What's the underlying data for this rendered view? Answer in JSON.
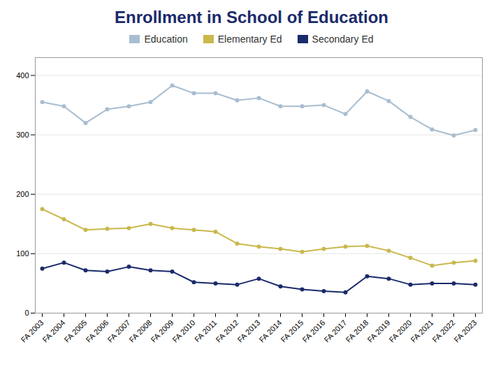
{
  "chart_data": {
    "type": "line",
    "title": "Enrollment in School of Education",
    "categories": [
      "FA 2003",
      "FA 2004",
      "FA 2005",
      "FA 2006",
      "FA 2007",
      "FA 2008",
      "FA 2009",
      "FA 2010",
      "FA 2011",
      "FA 2012",
      "FA 2013",
      "FA 2014",
      "FA 2015",
      "FA 2016",
      "FA 2017",
      "FA 2018",
      "FA 2019",
      "FA 2020",
      "FA 2021",
      "FA 2022",
      "FA 2023"
    ],
    "series": [
      {
        "name": "Education",
        "color": "#A8BDD0",
        "values": [
          355,
          348,
          320,
          343,
          348,
          355,
          383,
          370,
          370,
          358,
          362,
          348,
          348,
          350,
          335,
          373,
          357,
          330,
          309,
          299,
          308
        ]
      },
      {
        "name": "Elementary Ed",
        "color": "#C9B84C",
        "values": [
          175,
          158,
          140,
          142,
          143,
          150,
          143,
          140,
          137,
          117,
          112,
          108,
          103,
          108,
          112,
          113,
          105,
          93,
          80,
          85,
          88
        ]
      },
      {
        "name": "Secondary Ed",
        "color": "#1B2A6B",
        "values": [
          75,
          85,
          72,
          70,
          78,
          72,
          70,
          52,
          50,
          48,
          58,
          45,
          40,
          37,
          35,
          62,
          58,
          48,
          50,
          50,
          48
        ]
      }
    ],
    "ylim": [
      0,
      430
    ],
    "yticks": [
      0,
      100,
      200,
      300,
      400
    ],
    "grid": true,
    "legend": "top",
    "marker": "circle"
  }
}
